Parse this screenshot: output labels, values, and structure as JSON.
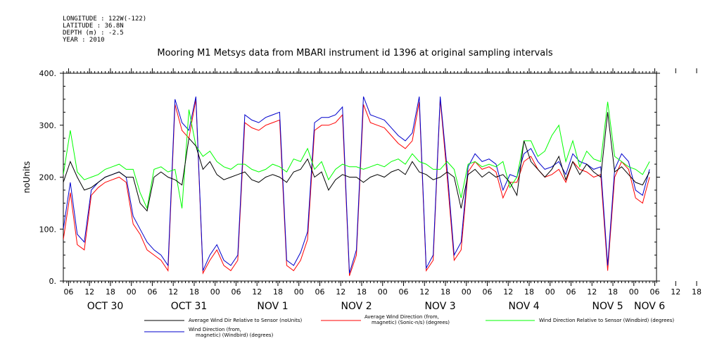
{
  "header": {
    "longitude": "LONGITUDE : 122W(-122)",
    "latitude": "LATITUDE : 36.8N",
    "depth": "DEPTH (m) : -2.5",
    "year": "YEAR : 2010"
  },
  "chart_data": {
    "type": "line",
    "title": "Mooring M1 Metsys data from MBARI instrument id 1396 at original sampling intervals",
    "ylabel": "noUnits",
    "xlabel": "",
    "ylim": [
      0,
      400
    ],
    "y_ticks": [
      0,
      100,
      200,
      300,
      400
    ],
    "y_tick_labels": [
      "0.",
      "100.",
      "200.",
      "300.",
      "400."
    ],
    "x_range_hours": [
      0,
      170
    ],
    "x_hour_tick_labels": [
      "06",
      "12",
      "18",
      "00",
      "06",
      "12",
      "18",
      "00",
      "06",
      "12",
      "18",
      "00",
      "06",
      "12",
      "18",
      "00",
      "06",
      "12",
      "18",
      "00",
      "06",
      "12",
      "18",
      "00",
      "06",
      "12",
      "18",
      "00",
      "06",
      "12",
      "18",
      "00"
    ],
    "x_date_labels": [
      {
        "label": "OCT 30",
        "hour": 12
      },
      {
        "label": "OCT 31",
        "hour": 36
      },
      {
        "label": "NOV  1",
        "hour": 60
      },
      {
        "label": "NOV  2",
        "hour": 84
      },
      {
        "label": "NOV  3",
        "hour": 108
      },
      {
        "label": "NOV  4",
        "hour": 132
      },
      {
        "label": "NOV  5",
        "hour": 156
      },
      {
        "label": "NOV  6",
        "hour": 168
      }
    ],
    "series": [
      {
        "name": "Average Wind Dir Relative to Sensor (noUnits)",
        "color": "#000000",
        "x": [
          0,
          2,
          4,
          6,
          8,
          10,
          12,
          14,
          16,
          18,
          20,
          22,
          24,
          26,
          28,
          30,
          32,
          34,
          36,
          38,
          40,
          42,
          44,
          46,
          48,
          50,
          52,
          54,
          56,
          58,
          60,
          62,
          64,
          66,
          68,
          70,
          72,
          74,
          76,
          78,
          80,
          82,
          84,
          86,
          88,
          90,
          92,
          94,
          96,
          98,
          100,
          102,
          104,
          106,
          108,
          110,
          112,
          114,
          116,
          118,
          120,
          122,
          124,
          126,
          128,
          130,
          132,
          134,
          136,
          138,
          140,
          142,
          144,
          146,
          148,
          150,
          152,
          154,
          156,
          158,
          160,
          162,
          164,
          166,
          168
        ],
        "y": [
          190,
          230,
          200,
          175,
          180,
          190,
          200,
          205,
          210,
          200,
          200,
          150,
          135,
          200,
          210,
          200,
          195,
          185,
          275,
          260,
          215,
          230,
          205,
          195,
          200,
          205,
          210,
          195,
          190,
          200,
          205,
          200,
          190,
          210,
          215,
          235,
          200,
          210,
          175,
          195,
          205,
          200,
          200,
          190,
          200,
          205,
          200,
          210,
          215,
          205,
          230,
          210,
          205,
          195,
          200,
          210,
          200,
          140,
          205,
          215,
          200,
          210,
          200,
          205,
          190,
          165,
          270,
          230,
          215,
          200,
          215,
          240,
          195,
          230,
          205,
          225,
          210,
          200,
          325,
          210,
          220,
          205,
          190,
          185,
          210
        ]
      },
      {
        "name": "Average Wind Direction (from, magnetic) (Sonic-n/s) (degrees)",
        "color": "#ff0000",
        "x": [
          0,
          2,
          4,
          6,
          8,
          10,
          12,
          14,
          16,
          18,
          20,
          22,
          24,
          26,
          28,
          30,
          32,
          34,
          36,
          38,
          40,
          42,
          44,
          46,
          48,
          50,
          52,
          54,
          56,
          58,
          60,
          62,
          64,
          66,
          68,
          70,
          72,
          74,
          76,
          78,
          80,
          82,
          84,
          86,
          88,
          90,
          92,
          94,
          96,
          98,
          100,
          102,
          104,
          106,
          108,
          110,
          112,
          114,
          116,
          118,
          120,
          122,
          124,
          126,
          128,
          130,
          132,
          134,
          136,
          138,
          140,
          142,
          144,
          146,
          148,
          150,
          152,
          154,
          156,
          158,
          160,
          162,
          164,
          166,
          168
        ],
        "y": [
          80,
          170,
          70,
          60,
          165,
          180,
          190,
          195,
          200,
          190,
          110,
          90,
          60,
          50,
          40,
          20,
          340,
          290,
          275,
          350,
          15,
          40,
          60,
          30,
          20,
          40,
          305,
          295,
          290,
          300,
          305,
          310,
          30,
          20,
          40,
          80,
          290,
          300,
          300,
          305,
          320,
          10,
          50,
          340,
          305,
          300,
          295,
          280,
          265,
          255,
          270,
          345,
          20,
          40,
          350,
          200,
          40,
          60,
          210,
          230,
          215,
          220,
          210,
          160,
          190,
          190,
          230,
          240,
          215,
          200,
          205,
          215,
          190,
          230,
          215,
          210,
          200,
          205,
          20,
          200,
          230,
          215,
          160,
          150,
          200
        ]
      },
      {
        "name": "Wind Direction Relative to Sensor (Windbird) (degrees)",
        "color": "#00ff00",
        "x": [
          0,
          2,
          4,
          6,
          8,
          10,
          12,
          14,
          16,
          18,
          20,
          22,
          24,
          26,
          28,
          30,
          32,
          34,
          36,
          38,
          40,
          42,
          44,
          46,
          48,
          50,
          52,
          54,
          56,
          58,
          60,
          62,
          64,
          66,
          68,
          70,
          72,
          74,
          76,
          78,
          80,
          82,
          84,
          86,
          88,
          90,
          92,
          94,
          96,
          98,
          100,
          102,
          104,
          106,
          108,
          110,
          112,
          114,
          116,
          118,
          120,
          122,
          124,
          126,
          128,
          130,
          132,
          134,
          136,
          138,
          140,
          142,
          144,
          146,
          148,
          150,
          152,
          154,
          156,
          158,
          160,
          162,
          164,
          166,
          168
        ],
        "y": [
          205,
          290,
          210,
          195,
          200,
          205,
          215,
          220,
          225,
          215,
          215,
          170,
          140,
          215,
          220,
          210,
          215,
          140,
          330,
          260,
          240,
          250,
          230,
          220,
          215,
          225,
          225,
          215,
          210,
          215,
          225,
          220,
          210,
          235,
          230,
          255,
          215,
          230,
          195,
          215,
          225,
          220,
          220,
          215,
          220,
          225,
          220,
          230,
          235,
          225,
          245,
          230,
          225,
          215,
          215,
          230,
          215,
          160,
          225,
          230,
          220,
          225,
          220,
          230,
          180,
          200,
          270,
          270,
          240,
          250,
          280,
          300,
          230,
          270,
          220,
          250,
          235,
          230,
          345,
          240,
          230,
          220,
          215,
          205,
          230
        ]
      },
      {
        "name": "Wind Direction (from, magnetic) (Windbird) (degrees)",
        "color": "#0000cc",
        "x": [
          0,
          2,
          4,
          6,
          8,
          10,
          12,
          14,
          16,
          18,
          20,
          22,
          24,
          26,
          28,
          30,
          32,
          34,
          36,
          38,
          40,
          42,
          44,
          46,
          48,
          50,
          52,
          54,
          56,
          58,
          60,
          62,
          64,
          66,
          68,
          70,
          72,
          74,
          76,
          78,
          80,
          82,
          84,
          86,
          88,
          90,
          92,
          94,
          96,
          98,
          100,
          102,
          104,
          106,
          108,
          110,
          112,
          114,
          116,
          118,
          120,
          122,
          124,
          126,
          128,
          130,
          132,
          134,
          136,
          138,
          140,
          142,
          144,
          146,
          148,
          150,
          152,
          154,
          156,
          158,
          160,
          162,
          164,
          166,
          168
        ],
        "y": [
          100,
          190,
          90,
          75,
          175,
          190,
          200,
          205,
          210,
          200,
          125,
          100,
          75,
          60,
          50,
          30,
          350,
          305,
          290,
          355,
          20,
          50,
          70,
          40,
          30,
          50,
          320,
          310,
          305,
          315,
          320,
          325,
          40,
          30,
          55,
          95,
          305,
          315,
          315,
          320,
          335,
          15,
          60,
          355,
          320,
          315,
          310,
          295,
          280,
          270,
          285,
          355,
          25,
          50,
          355,
          215,
          50,
          75,
          220,
          245,
          230,
          235,
          225,
          175,
          205,
          200,
          245,
          255,
          230,
          215,
          220,
          230,
          205,
          245,
          230,
          225,
          215,
          220,
          30,
          215,
          245,
          230,
          175,
          165,
          215
        ]
      }
    ],
    "legend": [
      {
        "label": "Average Wind Dir Relative to Sensor (noUnits)",
        "color": "#000000"
      },
      {
        "label": "Average Wind Direction (from, magnetic) (Sonic-n/s) (degrees)",
        "color": "#ff0000"
      },
      {
        "label": "Wind Direction Relative to Sensor (Windbird) (degrees)",
        "color": "#00ff00"
      },
      {
        "label": "Wind Direction (from, magnetic) (Windbird) (degrees)",
        "color": "#0000cc"
      }
    ],
    "legend_display": [
      {
        "lines": [
          "Average Wind Dir Relative to Sensor (noUnits)"
        ]
      },
      {
        "lines": [
          "Average Wind Direction (from,",
          "magnetic) (Sonic-n/s) (degrees)"
        ]
      },
      {
        "lines": [
          "Wind Direction Relative to Sensor (Windbird) (degrees)"
        ]
      },
      {
        "lines": [
          "Wind Direction (from,",
          "magnetic) (Windbird) (degrees)"
        ]
      }
    ]
  }
}
